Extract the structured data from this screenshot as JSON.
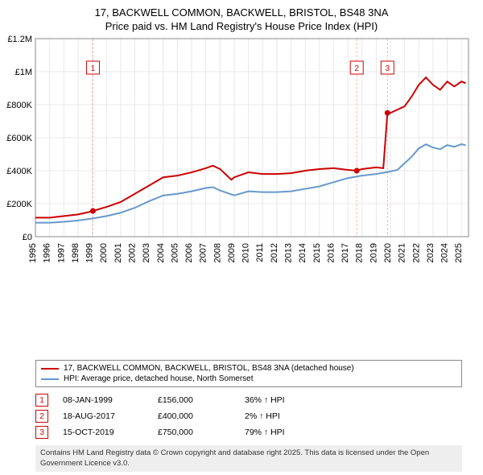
{
  "title_line1": "17, BACKWELL COMMON, BACKWELL, BRISTOL, BS48 3NA",
  "title_line2": "Price paid vs. HM Land Registry's House Price Index (HPI)",
  "chart": {
    "type": "line",
    "background_color": "#ffffff",
    "plot_border_color": "#888888",
    "grid_color": "#e8e8e8",
    "title_fontsize": 13,
    "label_fontsize": 11,
    "xlim": [
      1995,
      2025.5
    ],
    "ylim": [
      0,
      1200000
    ],
    "ytick_step": 200000,
    "ytick_labels": [
      "£0",
      "£200K",
      "£400K",
      "£600K",
      "£800K",
      "£1M",
      "£1.2M"
    ],
    "xtick_step": 1,
    "xtick_labels": [
      "1995",
      "1996",
      "1997",
      "1998",
      "1999",
      "2000",
      "2001",
      "2002",
      "2003",
      "2004",
      "2005",
      "2006",
      "2007",
      "2008",
      "2009",
      "2010",
      "2011",
      "2012",
      "2013",
      "2014",
      "2015",
      "2016",
      "2017",
      "2018",
      "2019",
      "2020",
      "2021",
      "2022",
      "2023",
      "2024",
      "2025"
    ],
    "series": [
      {
        "name": "property",
        "label": "17, BACKWELL COMMON, BACKWELL, BRISTOL, BS48 3NA (detached house)",
        "color": "#cc0000",
        "line_width": 2,
        "points": [
          [
            1995,
            115000
          ],
          [
            1996,
            115000
          ],
          [
            1997,
            125000
          ],
          [
            1998,
            135000
          ],
          [
            1998.8,
            150000
          ],
          [
            1999.05,
            156000
          ],
          [
            2000,
            180000
          ],
          [
            2001,
            210000
          ],
          [
            2002,
            260000
          ],
          [
            2003,
            310000
          ],
          [
            2004,
            360000
          ],
          [
            2005,
            370000
          ],
          [
            2006,
            390000
          ],
          [
            2007,
            415000
          ],
          [
            2007.5,
            430000
          ],
          [
            2008,
            410000
          ],
          [
            2008.8,
            345000
          ],
          [
            2009,
            360000
          ],
          [
            2010,
            390000
          ],
          [
            2011,
            380000
          ],
          [
            2012,
            380000
          ],
          [
            2013,
            385000
          ],
          [
            2014,
            400000
          ],
          [
            2015,
            410000
          ],
          [
            2016,
            415000
          ],
          [
            2017,
            405000
          ],
          [
            2017.63,
            400000
          ],
          [
            2018,
            410000
          ],
          [
            2019,
            420000
          ],
          [
            2019.5,
            415000
          ],
          [
            2019.79,
            750000
          ],
          [
            2020,
            750000
          ],
          [
            2020.5,
            770000
          ],
          [
            2021,
            790000
          ],
          [
            2021.5,
            850000
          ],
          [
            2022,
            920000
          ],
          [
            2022.5,
            965000
          ],
          [
            2023,
            920000
          ],
          [
            2023.5,
            890000
          ],
          [
            2024,
            940000
          ],
          [
            2024.5,
            910000
          ],
          [
            2025,
            940000
          ],
          [
            2025.3,
            930000
          ]
        ]
      },
      {
        "name": "hpi",
        "label": "HPI: Average price, detached house, North Somerset",
        "color": "#6699cc",
        "line_width": 2,
        "points": [
          [
            1995,
            85000
          ],
          [
            1996,
            85000
          ],
          [
            1997,
            90000
          ],
          [
            1998,
            98000
          ],
          [
            1999,
            110000
          ],
          [
            2000,
            125000
          ],
          [
            2001,
            145000
          ],
          [
            2002,
            175000
          ],
          [
            2003,
            215000
          ],
          [
            2004,
            250000
          ],
          [
            2005,
            260000
          ],
          [
            2006,
            275000
          ],
          [
            2007,
            295000
          ],
          [
            2007.5,
            300000
          ],
          [
            2008,
            280000
          ],
          [
            2009,
            250000
          ],
          [
            2010,
            275000
          ],
          [
            2011,
            270000
          ],
          [
            2012,
            270000
          ],
          [
            2013,
            275000
          ],
          [
            2014,
            290000
          ],
          [
            2015,
            305000
          ],
          [
            2016,
            330000
          ],
          [
            2017,
            355000
          ],
          [
            2018,
            370000
          ],
          [
            2019,
            380000
          ],
          [
            2020,
            395000
          ],
          [
            2020.5,
            405000
          ],
          [
            2021,
            445000
          ],
          [
            2021.5,
            485000
          ],
          [
            2022,
            535000
          ],
          [
            2022.5,
            560000
          ],
          [
            2023,
            540000
          ],
          [
            2023.5,
            530000
          ],
          [
            2024,
            555000
          ],
          [
            2024.5,
            545000
          ],
          [
            2025,
            560000
          ],
          [
            2025.3,
            555000
          ]
        ]
      }
    ],
    "sale_markers": [
      {
        "n": "1",
        "x": 1999.05,
        "y": 156000,
        "label_y_offset": -45,
        "line_color": "#ffb0b0"
      },
      {
        "n": "2",
        "x": 2017.63,
        "y": 400000,
        "label_y_offset": -95,
        "line_color": "#ffb0b0"
      },
      {
        "n": "3",
        "x": 2019.79,
        "y": 750000,
        "label_y_offset": -10,
        "line_color": "#ffb0b0"
      }
    ],
    "sale_marker_box_color": "#cc0000"
  },
  "legend": {
    "border_color": "#888888",
    "items": [
      {
        "color": "#cc0000",
        "text": "17, BACKWELL COMMON, BACKWELL, BRISTOL, BS48 3NA (detached house)"
      },
      {
        "color": "#6699cc",
        "text": "HPI: Average price, detached house, North Somerset"
      }
    ]
  },
  "sales": [
    {
      "n": "1",
      "date": "08-JAN-1999",
      "price": "£156,000",
      "pct": "36% ↑ HPI"
    },
    {
      "n": "2",
      "date": "18-AUG-2017",
      "price": "£400,000",
      "pct": "2% ↑ HPI"
    },
    {
      "n": "3",
      "date": "15-OCT-2019",
      "price": "£750,000",
      "pct": "79% ↑ HPI"
    }
  ],
  "footer": "Contains HM Land Registry data © Crown copyright and database right 2025. This data is licensed under the Open Government Licence v3.0."
}
